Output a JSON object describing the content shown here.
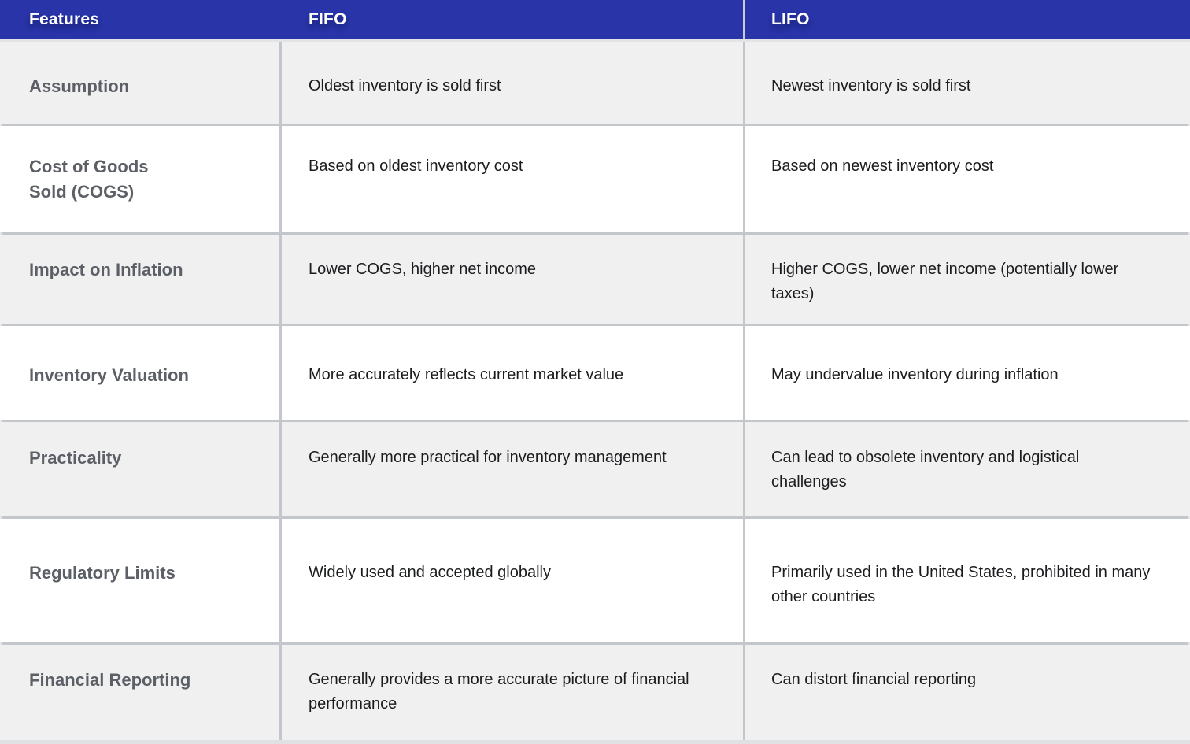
{
  "table": {
    "header": {
      "features": "Features",
      "fifo": "FIFO",
      "lifo": "LIFO"
    },
    "rows": [
      {
        "feature": "Assumption",
        "fifo": "Oldest inventory is sold first",
        "lifo": "Newest inventory is sold first"
      },
      {
        "feature": "Cost of Goods\nSold (COGS)",
        "fifo": "Based on oldest inventory cost",
        "lifo": "Based on newest inventory cost"
      },
      {
        "feature": "Impact on Inflation",
        "fifo": "Lower COGS, higher net income",
        "lifo": "Higher COGS, lower net income (potentially lower taxes)"
      },
      {
        "feature": "Inventory Valuation",
        "fifo": "More accurately reflects current market value",
        "lifo": "May undervalue inventory during inflation"
      },
      {
        "feature": "Practicality",
        "fifo": "Generally more practical for inventory management",
        "lifo": "Can lead to obsolete inventory and logistical challenges"
      },
      {
        "feature": "Regulatory Limits",
        "fifo": "Widely used and accepted globally",
        "lifo": "Primarily used in the United States, prohibited in many other countries"
      },
      {
        "feature": "Financial Reporting",
        "fifo": "Generally provides a more accurate picture of financial performance",
        "lifo": "Can distort financial reporting"
      }
    ]
  },
  "colors": {
    "header_bg": "#2834A8",
    "header_text": "#FFFFFF",
    "row_alt_bg": "#F0F0F1",
    "row_bg": "#FFFFFF",
    "grid_border": "#C3C6CA",
    "feature_text": "#5C6066",
    "cell_text": "#1B1C1E"
  }
}
